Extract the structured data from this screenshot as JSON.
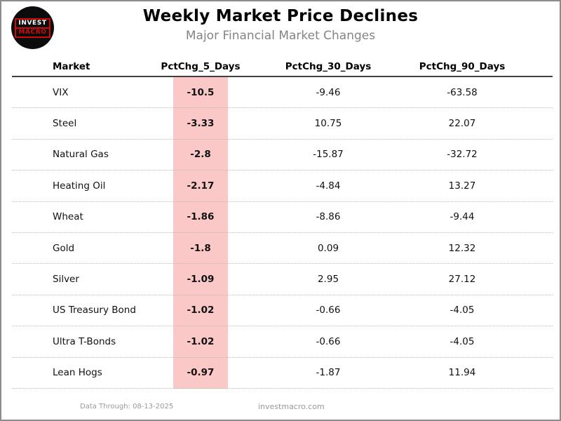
{
  "header": {
    "logo": {
      "line1": "INVEST",
      "line2": "MACRO"
    },
    "title": "Weekly Market Price Declines",
    "subtitle": "Major Financial Market Changes"
  },
  "footer": {
    "data_through": "Data Through: 08-13-2025",
    "website": "investmacro.com"
  },
  "colors": {
    "highlight_pink": "#fbc8c8",
    "logo_red": "#cf0a0a",
    "logo_black": "#0c0c0c",
    "subtitle_gray": "#848484",
    "footer_gray": "#999999",
    "frame_border_gray": "#8c8c8c",
    "header_rule_dark": "#404040",
    "row_rule_dotted_gray": "#bcbcbc"
  },
  "chart_data": {
    "type": "table",
    "title": "Weekly Market Price Declines",
    "subtitle": "Major Financial Market Changes",
    "columns": [
      "Market",
      "PctChg_5_Days",
      "PctChg_30_Days",
      "PctChg_90_Days"
    ],
    "highlighted_column": "PctChg_5_Days",
    "layout": {
      "market_column_align": "left",
      "value_columns_align": "center",
      "row_separator": "dotted",
      "header_separator": "solid"
    },
    "rows": [
      {
        "market": "VIX",
        "pct_5d": "-10.5",
        "pct_30d": "-9.46",
        "pct_90d": "-63.58"
      },
      {
        "market": "Steel",
        "pct_5d": "-3.33",
        "pct_30d": "10.75",
        "pct_90d": "22.07"
      },
      {
        "market": "Natural Gas",
        "pct_5d": "-2.8",
        "pct_30d": "-15.87",
        "pct_90d": "-32.72"
      },
      {
        "market": "Heating Oil",
        "pct_5d": "-2.17",
        "pct_30d": "-4.84",
        "pct_90d": "13.27"
      },
      {
        "market": "Wheat",
        "pct_5d": "-1.86",
        "pct_30d": "-8.86",
        "pct_90d": "-9.44"
      },
      {
        "market": "Gold",
        "pct_5d": "-1.8",
        "pct_30d": "0.09",
        "pct_90d": "12.32"
      },
      {
        "market": "Silver",
        "pct_5d": "-1.09",
        "pct_30d": "2.95",
        "pct_90d": "27.12"
      },
      {
        "market": "US Treasury Bond",
        "pct_5d": "-1.02",
        "pct_30d": "-0.66",
        "pct_90d": "-4.05"
      },
      {
        "market": "Ultra T-Bonds",
        "pct_5d": "-1.02",
        "pct_30d": "-0.66",
        "pct_90d": "-4.05"
      },
      {
        "market": "Lean Hogs",
        "pct_5d": "-0.97",
        "pct_30d": "-1.87",
        "pct_90d": "11.94"
      }
    ]
  }
}
